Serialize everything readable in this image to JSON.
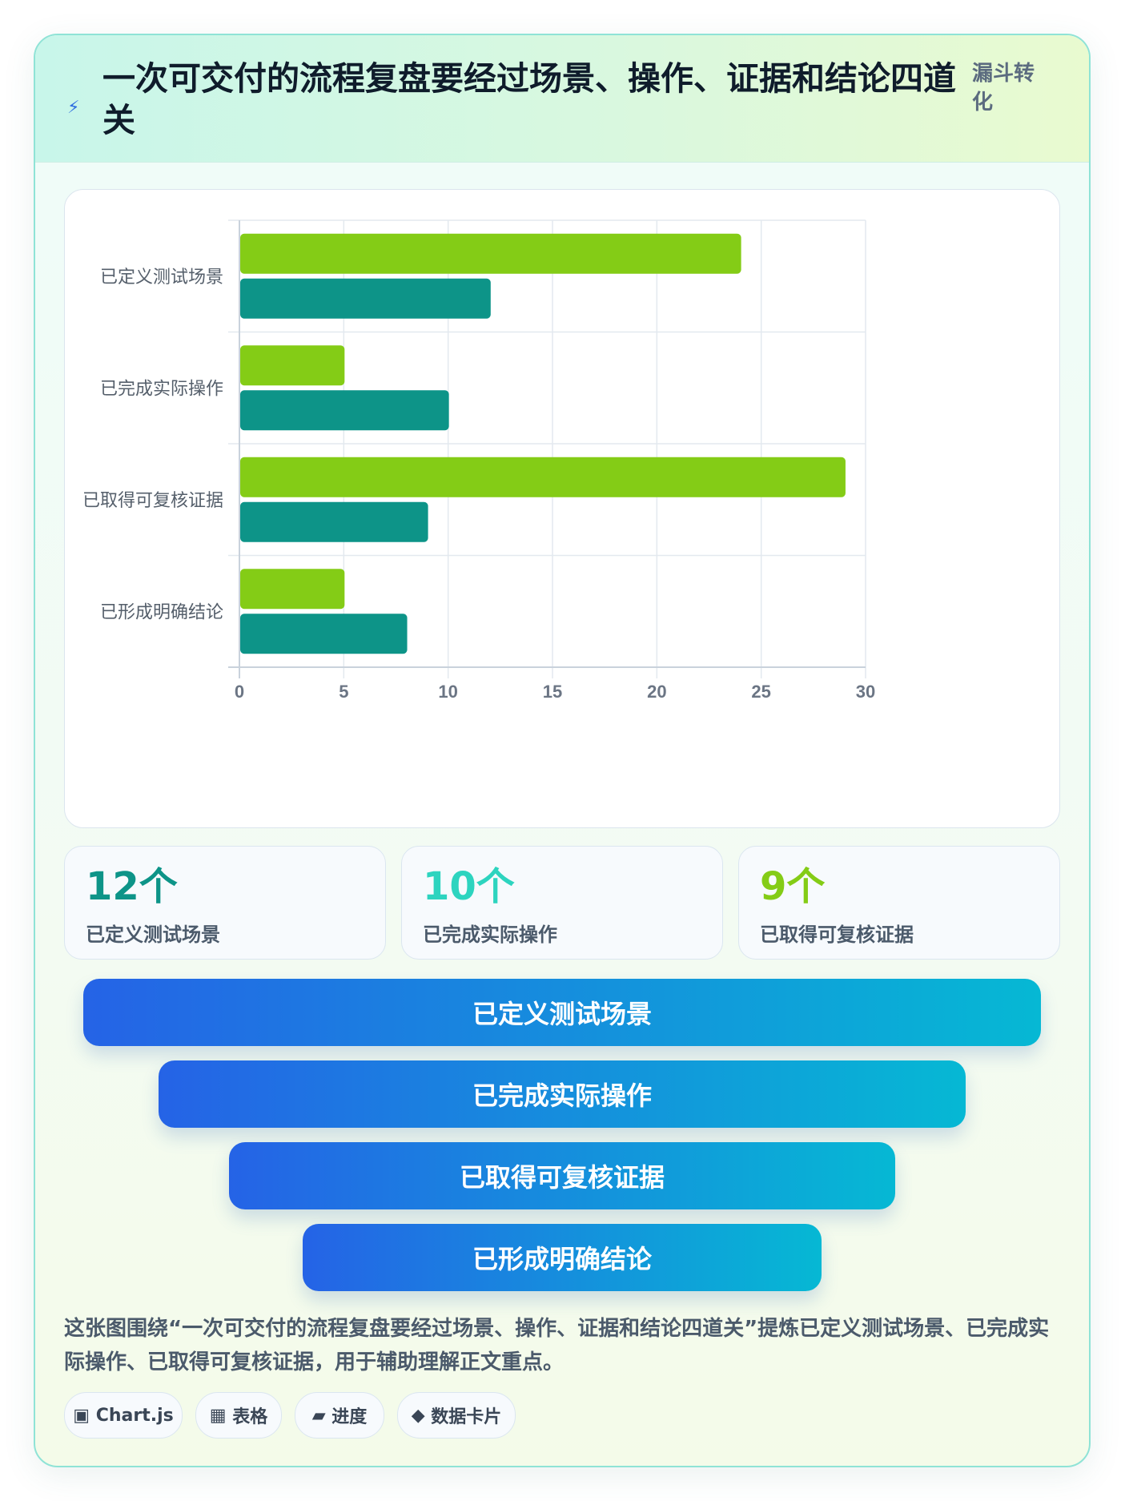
{
  "header": {
    "icon": "bolt-icon",
    "title": "一次可交付的流程复盘要经过场景、操作、证据和结论四道关",
    "tag": "漏斗转化"
  },
  "chart_data": {
    "type": "bar",
    "orientation": "horizontal",
    "categories": [
      "已定义测试场景",
      "已完成实际操作",
      "已取得可复核证据",
      "已形成明确结论"
    ],
    "series": [
      {
        "values": [
          24,
          5,
          29,
          5
        ],
        "color": "#84cc16"
      },
      {
        "values": [
          12,
          10,
          9,
          8
        ],
        "color": "#0d9488"
      }
    ],
    "xlim": [
      0,
      30
    ],
    "xticks": [
      "0",
      "5",
      "10",
      "15",
      "20",
      "25",
      "30"
    ],
    "grid": true,
    "legend": "none"
  },
  "stats": [
    {
      "value": "12个",
      "label": "已定义测试场景",
      "color": "#0d9488"
    },
    {
      "value": "10个",
      "label": "已完成实际操作",
      "color": "#2dd4bf"
    },
    {
      "value": "9个",
      "label": "已取得可复核证据",
      "color": "#84cc16"
    }
  ],
  "funnel": [
    "已定义测试场景",
    "已完成实际操作",
    "已取得可复核证据",
    "已形成明确结论"
  ],
  "caption": "这张图围绕“一次可交付的流程复盘要经过场景、操作、证据和结论四道关”提炼已定义测试场景、已完成实际操作、已取得可复核证据，用于辅助理解正文重点。",
  "chips": [
    {
      "icon": "▣",
      "label": "Chart.js"
    },
    {
      "icon": "▦",
      "label": "表格"
    },
    {
      "icon": "▰",
      "label": "进度"
    },
    {
      "icon": "◆",
      "label": "数据卡片"
    }
  ]
}
